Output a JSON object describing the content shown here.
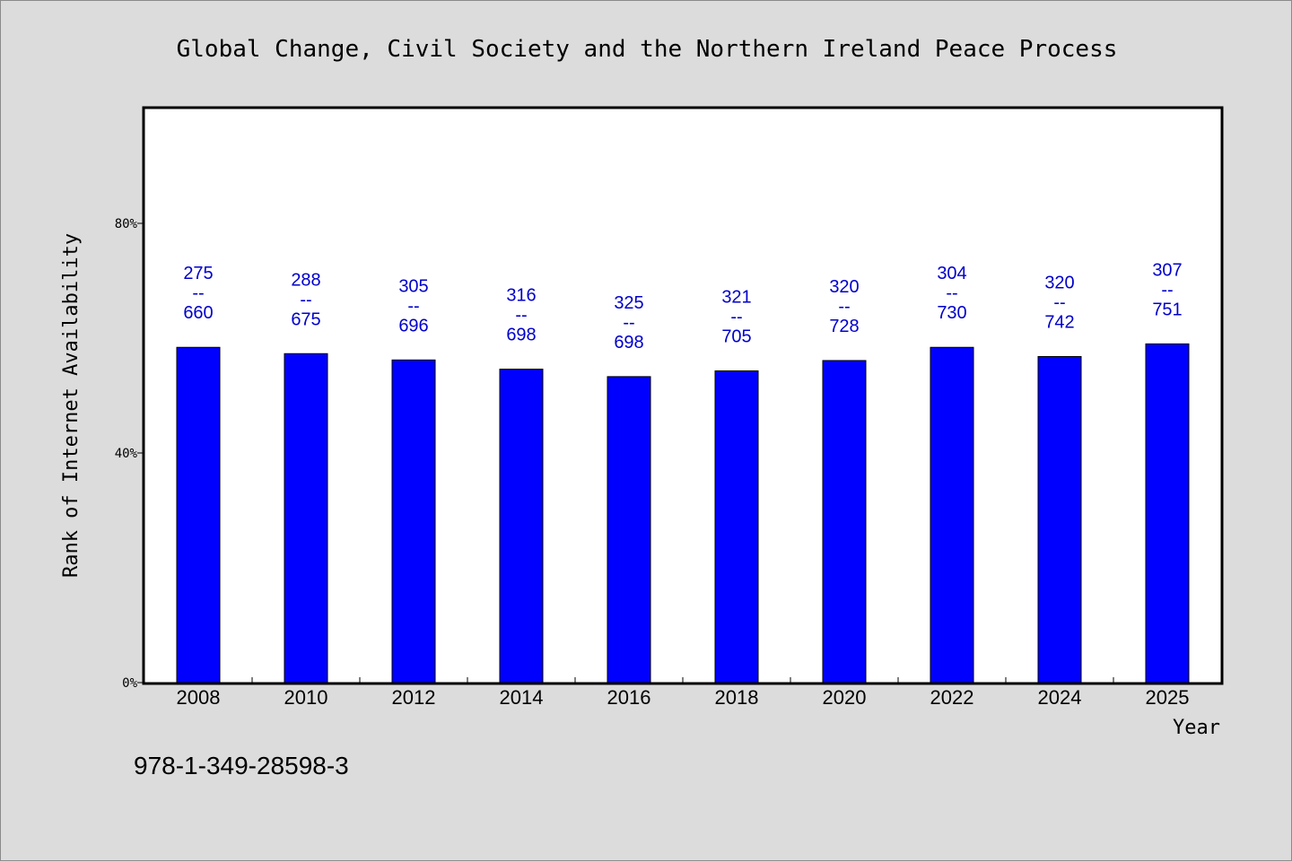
{
  "chart_data": {
    "type": "bar",
    "title": "Global Change, Civil Society and the Northern Ireland Peace Process",
    "xlabel": "Year",
    "ylabel": "Rank of Internet Availability",
    "categories": [
      "2008",
      "2010",
      "2012",
      "2014",
      "2016",
      "2018",
      "2020",
      "2022",
      "2024",
      "2025"
    ],
    "values": [
      58.4,
      57.3,
      56.2,
      54.6,
      53.3,
      54.3,
      56.1,
      58.4,
      56.8,
      59.0
    ],
    "data_labels": [
      {
        "top": "275",
        "mid": "--",
        "bottom": "660"
      },
      {
        "top": "288",
        "mid": "--",
        "bottom": "675"
      },
      {
        "top": "305",
        "mid": "--",
        "bottom": "696"
      },
      {
        "top": "316",
        "mid": "--",
        "bottom": "698"
      },
      {
        "top": "325",
        "mid": "--",
        "bottom": "698"
      },
      {
        "top": "321",
        "mid": "--",
        "bottom": "705"
      },
      {
        "top": "320",
        "mid": "--",
        "bottom": "728"
      },
      {
        "top": "304",
        "mid": "--",
        "bottom": "730"
      },
      {
        "top": "320",
        "mid": "--",
        "bottom": "742"
      },
      {
        "top": "307",
        "mid": "--",
        "bottom": "751"
      }
    ],
    "yticks": [
      {
        "value": 0,
        "label": "0%"
      },
      {
        "value": 40,
        "label": "40%"
      },
      {
        "value": 80,
        "label": "80%"
      }
    ],
    "ylim": [
      0,
      100
    ],
    "grid": false,
    "legend": "none",
    "bar_color": "#0000ff",
    "label_color": "#0000cc"
  },
  "footer": {
    "isbn": "978-1-349-28598-3"
  }
}
